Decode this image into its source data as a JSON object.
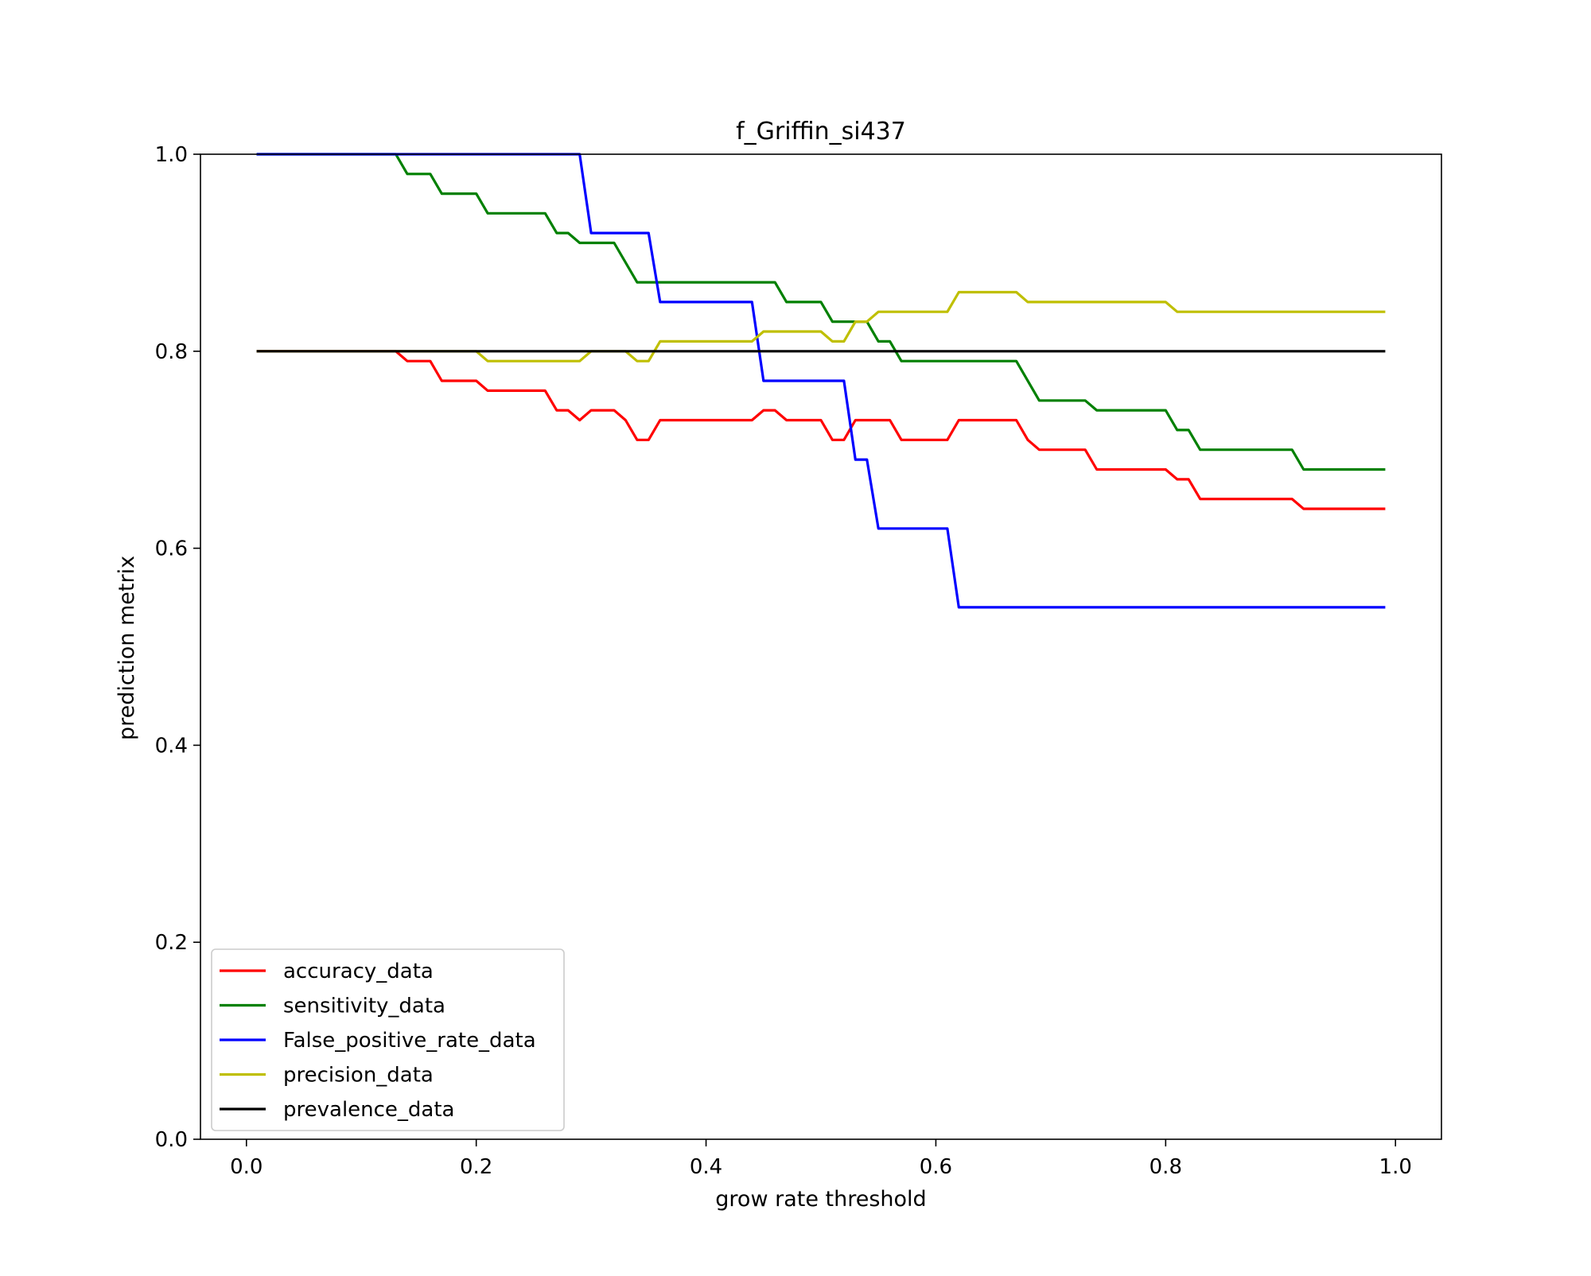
{
  "chart_data": {
    "type": "line",
    "title": "f_Griffin_si437",
    "xlabel": "grow rate threshold",
    "ylabel": "prediction metrix",
    "xlim": [
      -0.04,
      1.04
    ],
    "ylim": [
      0.0,
      1.0
    ],
    "xticks": [
      0.0,
      0.2,
      0.4,
      0.6,
      0.8,
      1.0
    ],
    "xtick_labels": [
      "0.0",
      "0.2",
      "0.4",
      "0.6",
      "0.8",
      "1.0"
    ],
    "yticks": [
      0.0,
      0.2,
      0.4,
      0.6,
      0.8,
      1.0
    ],
    "ytick_labels": [
      "0.0",
      "0.2",
      "0.4",
      "0.6",
      "0.8",
      "1.0"
    ],
    "grid": false,
    "legend_position": "lower-left",
    "series": [
      {
        "name": "accuracy_data",
        "color": "#ff0000",
        "x": [
          0.01,
          0.13,
          0.14,
          0.16,
          0.17,
          0.2,
          0.21,
          0.26,
          0.27,
          0.28,
          0.29,
          0.3,
          0.32,
          0.33,
          0.34,
          0.35,
          0.36,
          0.44,
          0.45,
          0.46,
          0.47,
          0.5,
          0.51,
          0.52,
          0.53,
          0.56,
          0.57,
          0.61,
          0.62,
          0.67,
          0.68,
          0.69,
          0.73,
          0.74,
          0.8,
          0.81,
          0.82,
          0.83,
          0.91,
          0.92,
          0.99
        ],
        "y": [
          0.8,
          0.8,
          0.79,
          0.79,
          0.77,
          0.77,
          0.76,
          0.76,
          0.74,
          0.74,
          0.73,
          0.74,
          0.74,
          0.73,
          0.71,
          0.71,
          0.73,
          0.73,
          0.74,
          0.74,
          0.73,
          0.73,
          0.71,
          0.71,
          0.73,
          0.73,
          0.71,
          0.71,
          0.73,
          0.73,
          0.71,
          0.7,
          0.7,
          0.68,
          0.68,
          0.67,
          0.67,
          0.65,
          0.65,
          0.64,
          0.64
        ]
      },
      {
        "name": "sensitivity_data",
        "color": "#008000",
        "x": [
          0.01,
          0.13,
          0.14,
          0.16,
          0.17,
          0.2,
          0.21,
          0.26,
          0.27,
          0.28,
          0.29,
          0.32,
          0.34,
          0.46,
          0.47,
          0.5,
          0.51,
          0.54,
          0.55,
          0.56,
          0.57,
          0.67,
          0.69,
          0.73,
          0.74,
          0.8,
          0.81,
          0.82,
          0.83,
          0.91,
          0.92,
          0.99
        ],
        "y": [
          1.0,
          1.0,
          0.98,
          0.98,
          0.96,
          0.96,
          0.94,
          0.94,
          0.92,
          0.92,
          0.91,
          0.91,
          0.87,
          0.87,
          0.85,
          0.85,
          0.83,
          0.83,
          0.81,
          0.81,
          0.79,
          0.79,
          0.75,
          0.75,
          0.74,
          0.74,
          0.72,
          0.72,
          0.7,
          0.7,
          0.68,
          0.68
        ]
      },
      {
        "name": "False_positive_rate_data",
        "color": "#0000ff",
        "x": [
          0.01,
          0.29,
          0.3,
          0.35,
          0.36,
          0.44,
          0.45,
          0.52,
          0.53,
          0.54,
          0.55,
          0.61,
          0.62,
          0.99
        ],
        "y": [
          1.0,
          1.0,
          0.92,
          0.92,
          0.85,
          0.85,
          0.77,
          0.77,
          0.69,
          0.69,
          0.62,
          0.62,
          0.54,
          0.54
        ]
      },
      {
        "name": "precision_data",
        "color": "#bfbf00",
        "x": [
          0.01,
          0.2,
          0.21,
          0.29,
          0.3,
          0.33,
          0.34,
          0.35,
          0.36,
          0.44,
          0.45,
          0.5,
          0.51,
          0.52,
          0.53,
          0.54,
          0.55,
          0.61,
          0.62,
          0.67,
          0.68,
          0.8,
          0.81,
          0.99
        ],
        "y": [
          0.8,
          0.8,
          0.79,
          0.79,
          0.8,
          0.8,
          0.79,
          0.79,
          0.81,
          0.81,
          0.82,
          0.82,
          0.81,
          0.81,
          0.83,
          0.83,
          0.84,
          0.84,
          0.86,
          0.86,
          0.85,
          0.85,
          0.84,
          0.84
        ]
      },
      {
        "name": "prevalence_data",
        "color": "#000000",
        "x": [
          0.01,
          0.99
        ],
        "y": [
          0.8,
          0.8
        ]
      }
    ]
  }
}
